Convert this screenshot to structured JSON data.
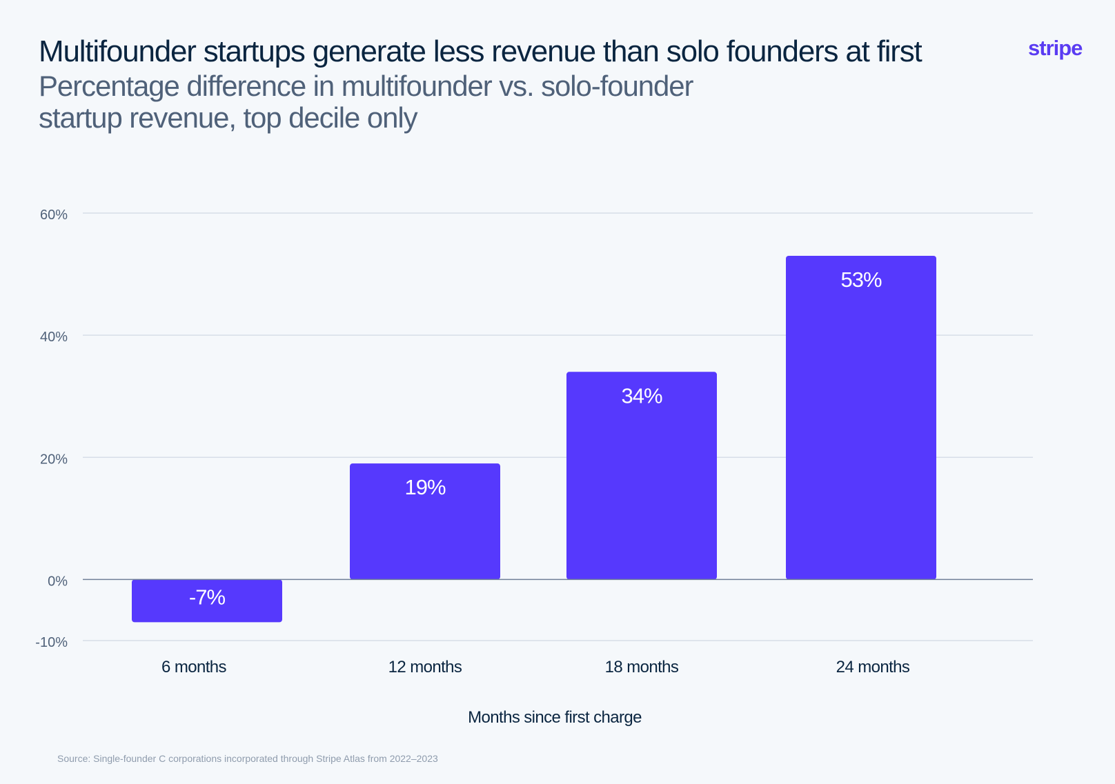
{
  "header": {
    "title": "Multifounder startups generate less revenue than solo founders at first",
    "subtitle": "Percentage difference in multifounder vs. solo-founder startup revenue, top decile only",
    "logo": "stripe"
  },
  "footer": {
    "source": "Source: Single-founder C corporations incorporated through Stripe Atlas from 2022–2023"
  },
  "colors": {
    "bar": "#5639fd",
    "grid": "#d7dee8",
    "zero_line": "#6f7f97",
    "label": "#ffffff",
    "axis_text": "#4f6179",
    "category_text": "#0a2540",
    "logo": "#5a3cf2"
  },
  "chart_data": {
    "type": "bar",
    "categories": [
      "6 months",
      "12 months",
      "18 months",
      "24 months"
    ],
    "values": [
      -7,
      19,
      34,
      53
    ],
    "value_labels": [
      "-7%",
      "19%",
      "34%",
      "53%"
    ],
    "xlabel": "Months since first charge",
    "ylabel": "",
    "ylim": [
      -10,
      60
    ],
    "yticks": [
      -10,
      0,
      20,
      40,
      60
    ],
    "ytick_labels": [
      "-10%",
      "0%",
      "20%",
      "40%",
      "60%"
    ],
    "grid": true
  }
}
